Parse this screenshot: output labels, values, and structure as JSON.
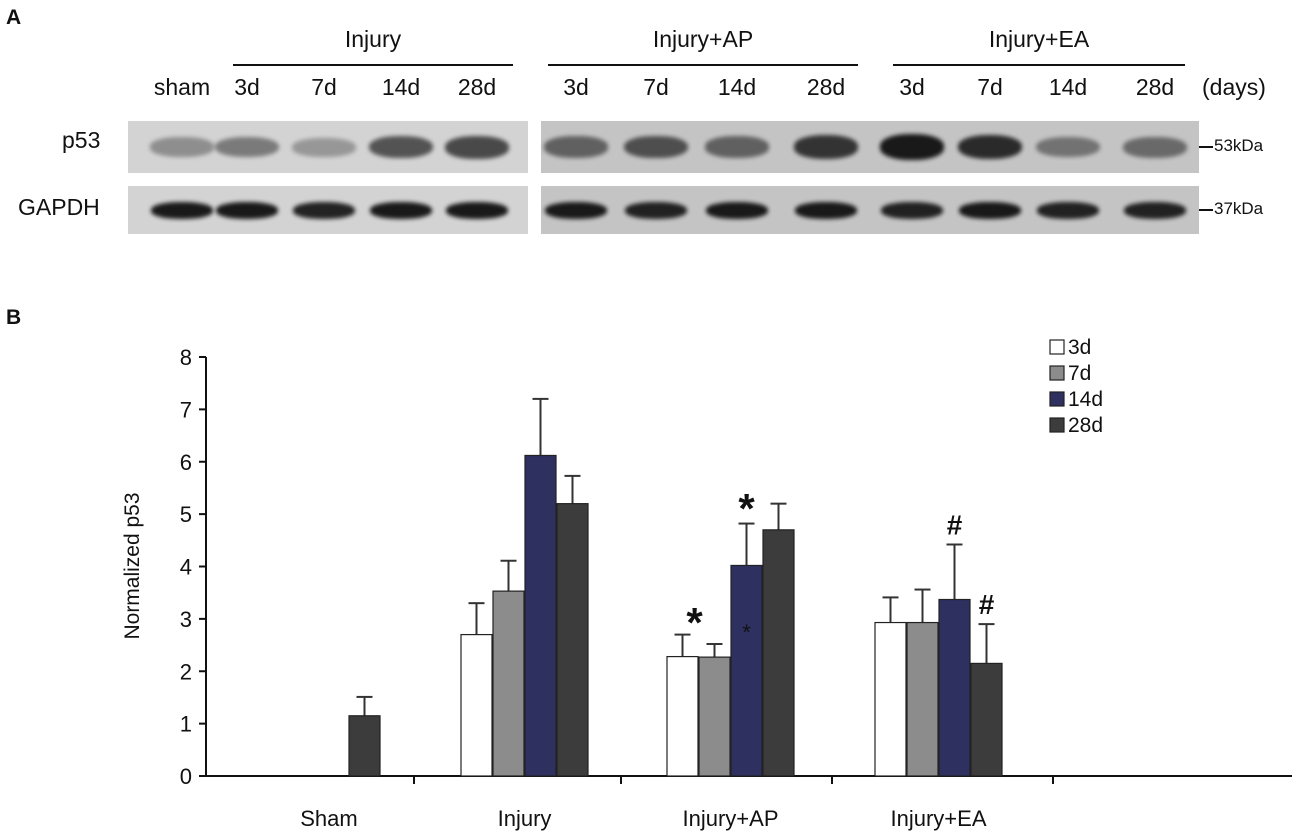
{
  "panel_a": {
    "label": "A",
    "groups": [
      {
        "name": "Injury"
      },
      {
        "name": "Injury+AP"
      },
      {
        "name": "Injury+EA"
      }
    ],
    "lanes": [
      "sham",
      "3d",
      "7d",
      "14d",
      "28d",
      "3d",
      "7d",
      "14d",
      "28d",
      "3d",
      "7d",
      "14d",
      "28d"
    ],
    "days_label": "(days)",
    "rows": [
      {
        "name": "p53",
        "marker": "53kDa",
        "bands": [
          0.35,
          0.45,
          0.3,
          0.65,
          0.7,
          0.55,
          0.65,
          0.55,
          0.8,
          0.95,
          0.85,
          0.45,
          0.5
        ]
      },
      {
        "name": "GAPDH",
        "marker": "37kDa",
        "bands": [
          0.95,
          0.95,
          0.9,
          0.95,
          0.95,
          0.95,
          0.9,
          0.95,
          0.95,
          0.9,
          0.95,
          0.9,
          0.9
        ]
      }
    ],
    "colors": {
      "blot_bg": "#c4c4c4",
      "band": "#101010"
    }
  },
  "chart_data": {
    "type": "bar",
    "label": "B",
    "categories": [
      "Sham",
      "Injury",
      "Injury+AP",
      "Injury+EA"
    ],
    "ylabel": "Normalized p53",
    "ylim": [
      0,
      8
    ],
    "yticks": [
      0,
      1,
      2,
      3,
      4,
      5,
      6,
      7,
      8
    ],
    "grid": false,
    "legend_position": "top-right",
    "series": [
      {
        "name": "3d",
        "color": "#ffffff",
        "values": [
          null,
          2.7,
          2.28,
          2.93
        ],
        "errors": [
          null,
          0.6,
          0.42,
          0.48
        ]
      },
      {
        "name": "7d",
        "color": "#8c8c8c",
        "values": [
          null,
          3.53,
          2.27,
          2.93
        ],
        "errors": [
          null,
          0.58,
          0.25,
          0.63
        ]
      },
      {
        "name": "14d",
        "color": "#2e3060",
        "values": [
          null,
          6.12,
          4.02,
          3.37
        ],
        "errors": [
          null,
          1.08,
          0.8,
          1.05
        ]
      },
      {
        "name": "28d",
        "color": "#3c3c3c",
        "values": [
          1.15,
          5.2,
          4.7,
          2.15
        ],
        "errors": [
          0.36,
          0.53,
          0.5,
          0.75
        ]
      }
    ],
    "annotations": [
      {
        "text": "*",
        "category": 2,
        "series": 1,
        "size": "large"
      },
      {
        "text": "*",
        "category": 2,
        "series": 2,
        "size": "small"
      },
      {
        "text": "*",
        "category": 2,
        "series": 2,
        "size": "large"
      },
      {
        "text": "#",
        "category": 3,
        "series": 2,
        "size": "large"
      },
      {
        "text": "#",
        "category": 3,
        "series": 3,
        "size": "large"
      }
    ]
  }
}
